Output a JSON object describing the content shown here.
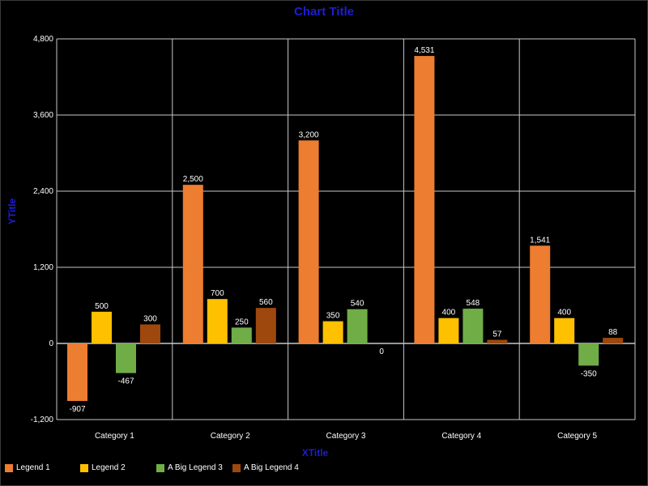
{
  "chart_data": {
    "type": "bar",
    "title": "Chart Title",
    "xlabel": "XTitle",
    "ylabel": "YTitle",
    "categories": [
      "Category 1",
      "Category 2",
      "Category 3",
      "Category 4",
      "Category 5"
    ],
    "ylim": [
      -1200,
      4800
    ],
    "yticks": [
      -1200,
      0,
      1200,
      2400,
      3600,
      4800
    ],
    "ytick_labels": [
      "-1,200",
      "0",
      "1,200",
      "2,400",
      "3,600",
      "4,800"
    ],
    "grid": true,
    "legend_position": "bottom-left",
    "series": [
      {
        "name": "Legend 1",
        "color": "#ed7d31",
        "values": [
          -907,
          2500,
          3200,
          4531,
          1541
        ],
        "labels": [
          "-907",
          "2,500",
          "3,200",
          "4,531",
          "1,541"
        ]
      },
      {
        "name": "Legend 2",
        "color": "#ffc000",
        "values": [
          500,
          700,
          350,
          400,
          400
        ],
        "labels": [
          "500",
          "700",
          "350",
          "400",
          "400"
        ]
      },
      {
        "name": "A Big Legend 3",
        "color": "#70ad47",
        "values": [
          -467,
          250,
          540,
          548,
          -350
        ],
        "labels": [
          "-467",
          "250",
          "540",
          "548",
          "-350"
        ]
      },
      {
        "name": "A Big Legend 4",
        "color": "#9e480e",
        "values": [
          300,
          560,
          0,
          57,
          88
        ],
        "labels": [
          "300",
          "560",
          "0",
          "57",
          "88"
        ]
      }
    ]
  },
  "colors": {
    "background": "#000000",
    "title": "#1d1dd6",
    "grid": "#c8c8c8",
    "text": "#ffffff"
  }
}
